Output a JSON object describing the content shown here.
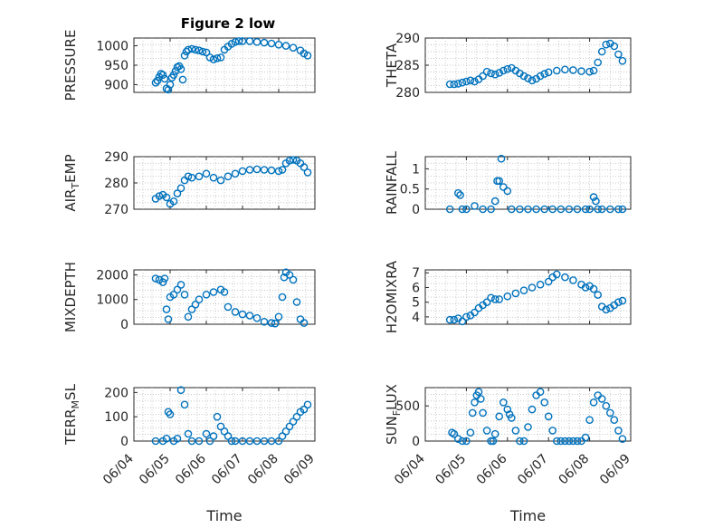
{
  "figure": {
    "title": "Figure 2 low",
    "x_axis_label": "Time",
    "x_tick_labels": [
      "06/04",
      "06/05",
      "06/06",
      "06/07",
      "06/08",
      "06/09"
    ]
  },
  "colors": {
    "marker": "#0072BD",
    "axes": "#262626",
    "grid": "#b8b8b8"
  },
  "chart_data": [
    {
      "type": "scatter",
      "panel": "top-left",
      "title": "Figure 2 low",
      "ylabel": "PRESSURE",
      "xlabel": "",
      "ylim": [
        880,
        1020
      ],
      "yticks": [
        900,
        950,
        1000
      ],
      "ytick_labels": [
        "900",
        "950",
        "1000"
      ],
      "xlim": [
        0,
        5
      ],
      "xticks": [
        0,
        1,
        2,
        3,
        4,
        5
      ],
      "x": [
        0.6,
        0.65,
        0.7,
        0.75,
        0.8,
        0.85,
        0.9,
        0.95,
        1.0,
        1.05,
        1.1,
        1.15,
        1.2,
        1.25,
        1.3,
        1.35,
        1.4,
        1.45,
        1.5,
        1.6,
        1.7,
        1.8,
        1.9,
        2.0,
        2.1,
        2.2,
        2.3,
        2.4,
        2.5,
        2.6,
        2.7,
        2.8,
        2.9,
        3.0,
        3.2,
        3.4,
        3.6,
        3.8,
        4.0,
        4.2,
        4.4,
        4.6,
        4.7,
        4.8
      ],
      "y": [
        905,
        910,
        920,
        928,
        925,
        915,
        890,
        887,
        900,
        918,
        925,
        935,
        945,
        948,
        940,
        913,
        975,
        985,
        990,
        992,
        990,
        988,
        985,
        983,
        970,
        965,
        968,
        970,
        990,
        998,
        1005,
        1010,
        1012,
        1012,
        1012,
        1010,
        1008,
        1006,
        1003,
        1000,
        995,
        988,
        980,
        975
      ]
    },
    {
      "type": "scatter",
      "panel": "top-right",
      "title": "",
      "ylabel": "THETA",
      "xlabel": "",
      "ylim": [
        280,
        290
      ],
      "yticks": [
        280,
        285,
        290
      ],
      "ytick_labels": [
        "280",
        "285",
        "290"
      ],
      "xlim": [
        0,
        5
      ],
      "xticks": [
        0,
        1,
        2,
        3,
        4,
        5
      ],
      "x": [
        0.6,
        0.7,
        0.8,
        0.9,
        1.0,
        1.1,
        1.2,
        1.3,
        1.4,
        1.5,
        1.6,
        1.7,
        1.8,
        1.9,
        2.0,
        2.1,
        2.2,
        2.3,
        2.4,
        2.5,
        2.6,
        2.7,
        2.8,
        2.9,
        3.0,
        3.2,
        3.4,
        3.6,
        3.8,
        4.0,
        4.1,
        4.2,
        4.3,
        4.4,
        4.5,
        4.6,
        4.7,
        4.8
      ],
      "y": [
        281.5,
        281.5,
        281.6,
        281.8,
        282.0,
        282.2,
        282.0,
        282.4,
        283.0,
        283.8,
        283.5,
        283.3,
        283.6,
        284.0,
        284.3,
        284.5,
        284.0,
        283.5,
        283.0,
        282.6,
        282.2,
        282.5,
        283.0,
        283.4,
        283.7,
        284.0,
        284.2,
        284.1,
        283.9,
        283.8,
        284.0,
        285.5,
        287.5,
        288.8,
        289.0,
        288.5,
        287.0,
        285.8
      ]
    },
    {
      "type": "scatter",
      "panel": "second-left",
      "title": "",
      "ylabel": "AIR_TEMP",
      "xlabel": "",
      "ylim": [
        270,
        290
      ],
      "yticks": [
        270,
        280,
        290
      ],
      "ytick_labels": [
        "270",
        "280",
        "290"
      ],
      "xlim": [
        0,
        5
      ],
      "xticks": [
        0,
        1,
        2,
        3,
        4,
        5
      ],
      "x": [
        0.6,
        0.7,
        0.8,
        0.9,
        1.0,
        1.1,
        1.2,
        1.3,
        1.4,
        1.5,
        1.6,
        1.8,
        2.0,
        2.2,
        2.4,
        2.6,
        2.8,
        3.0,
        3.2,
        3.4,
        3.6,
        3.8,
        4.0,
        4.1,
        4.2,
        4.3,
        4.4,
        4.5,
        4.6,
        4.7,
        4.8
      ],
      "y": [
        274.0,
        275.0,
        275.5,
        274.5,
        272.0,
        273.0,
        276.0,
        278.0,
        281.0,
        282.5,
        282.0,
        282.5,
        283.5,
        282.0,
        281.0,
        282.5,
        283.5,
        284.5,
        285.0,
        285.2,
        285.0,
        284.8,
        284.5,
        285.0,
        287.5,
        288.5,
        288.8,
        288.5,
        287.5,
        286.0,
        284.0
      ]
    },
    {
      "type": "scatter",
      "panel": "second-right",
      "title": "",
      "ylabel": "RAINFALL",
      "xlabel": "",
      "ylim": [
        0,
        1.3
      ],
      "yticks": [
        0,
        0.5,
        1
      ],
      "ytick_labels": [
        "0",
        "0.5",
        "1"
      ],
      "xlim": [
        0,
        5
      ],
      "xticks": [
        0,
        1,
        2,
        3,
        4,
        5
      ],
      "x": [
        0.6,
        0.8,
        0.85,
        0.9,
        1.0,
        1.2,
        1.4,
        1.6,
        1.7,
        1.75,
        1.8,
        1.85,
        1.9,
        2.0,
        2.1,
        2.3,
        2.5,
        2.7,
        2.9,
        3.1,
        3.3,
        3.5,
        3.7,
        3.9,
        4.0,
        4.1,
        4.15,
        4.2,
        4.3,
        4.5,
        4.7,
        4.8
      ],
      "y": [
        0,
        0.4,
        0.35,
        0,
        0,
        0.08,
        0,
        0,
        0.2,
        0.7,
        0.7,
        1.25,
        0.55,
        0.45,
        0,
        0,
        0,
        0,
        0,
        0,
        0,
        0,
        0,
        0,
        0,
        0.3,
        0.2,
        0,
        0,
        0,
        0,
        0
      ]
    },
    {
      "type": "scatter",
      "panel": "third-left",
      "title": "",
      "ylabel": "MIXDEPTH",
      "xlabel": "",
      "ylim": [
        0,
        2200
      ],
      "yticks": [
        0,
        1000,
        2000
      ],
      "ytick_labels": [
        "0",
        "1000",
        "2000"
      ],
      "xlim": [
        0,
        5
      ],
      "xticks": [
        0,
        1,
        2,
        3,
        4,
        5
      ],
      "x": [
        0.6,
        0.7,
        0.8,
        0.85,
        0.9,
        0.95,
        1.0,
        1.1,
        1.2,
        1.3,
        1.4,
        1.5,
        1.6,
        1.7,
        1.8,
        2.0,
        2.2,
        2.4,
        2.5,
        2.6,
        2.8,
        3.0,
        3.2,
        3.4,
        3.6,
        3.8,
        3.9,
        4.0,
        4.1,
        4.15,
        4.2,
        4.3,
        4.4,
        4.5,
        4.6,
        4.7
      ],
      "y": [
        1850,
        1800,
        1700,
        1850,
        600,
        200,
        1100,
        1200,
        1400,
        1600,
        1200,
        300,
        600,
        800,
        1000,
        1200,
        1300,
        1400,
        1300,
        700,
        500,
        400,
        350,
        250,
        100,
        50,
        30,
        300,
        1100,
        1900,
        2100,
        2000,
        1800,
        900,
        200,
        50
      ]
    },
    {
      "type": "scatter",
      "panel": "third-right",
      "title": "",
      "ylabel": "H2OMIXRA",
      "xlabel": "",
      "ylim": [
        3.5,
        7.2
      ],
      "yticks": [
        4,
        5,
        6,
        7
      ],
      "ytick_labels": [
        "4",
        "5",
        "6",
        "7"
      ],
      "xlim": [
        0,
        5
      ],
      "xticks": [
        0,
        1,
        2,
        3,
        4,
        5
      ],
      "x": [
        0.6,
        0.7,
        0.8,
        0.9,
        1.0,
        1.1,
        1.2,
        1.3,
        1.4,
        1.5,
        1.6,
        1.7,
        1.8,
        2.0,
        2.2,
        2.4,
        2.6,
        2.8,
        3.0,
        3.1,
        3.2,
        3.4,
        3.6,
        3.8,
        3.9,
        4.0,
        4.1,
        4.2,
        4.3,
        4.4,
        4.5,
        4.6,
        4.7,
        4.8
      ],
      "y": [
        3.8,
        3.8,
        3.9,
        3.7,
        4.0,
        4.1,
        4.3,
        4.6,
        4.8,
        5.0,
        5.3,
        5.2,
        5.2,
        5.4,
        5.6,
        5.8,
        6.0,
        6.2,
        6.4,
        6.7,
        6.9,
        6.7,
        6.5,
        6.2,
        6.0,
        6.1,
        5.9,
        5.5,
        4.7,
        4.5,
        4.6,
        4.8,
        5.0,
        5.1
      ]
    },
    {
      "type": "scatter",
      "panel": "bottom-left",
      "title": "",
      "ylabel": "TERR_MSL",
      "xlabel": "Time",
      "ylim": [
        0,
        220
      ],
      "yticks": [
        0,
        100,
        200
      ],
      "ytick_labels": [
        "0",
        "100",
        "200"
      ],
      "xlim": [
        0,
        5
      ],
      "xticks": [
        0,
        1,
        2,
        3,
        4,
        5
      ],
      "x": [
        0.6,
        0.8,
        0.9,
        0.95,
        1.0,
        1.1,
        1.2,
        1.3,
        1.4,
        1.5,
        1.6,
        1.8,
        2.0,
        2.1,
        2.2,
        2.3,
        2.4,
        2.5,
        2.6,
        2.7,
        2.8,
        3.0,
        3.2,
        3.4,
        3.6,
        3.8,
        4.0,
        4.1,
        4.2,
        4.3,
        4.4,
        4.5,
        4.6,
        4.7,
        4.8
      ],
      "y": [
        0,
        0,
        10,
        120,
        110,
        0,
        10,
        210,
        150,
        30,
        0,
        0,
        30,
        0,
        20,
        100,
        60,
        40,
        20,
        0,
        0,
        0,
        0,
        0,
        0,
        0,
        0,
        20,
        40,
        60,
        80,
        100,
        120,
        130,
        150
      ]
    },
    {
      "type": "scatter",
      "panel": "bottom-right",
      "title": "",
      "ylabel": "SUN_FLUX",
      "xlabel": "Time",
      "ylim": [
        0,
        760
      ],
      "yticks": [
        0,
        500
      ],
      "ytick_labels": [
        "0",
        "500"
      ],
      "xlim": [
        0,
        5
      ],
      "xticks": [
        0,
        1,
        2,
        3,
        4,
        5
      ],
      "x": [
        0.65,
        0.7,
        0.8,
        0.9,
        1.0,
        1.1,
        1.15,
        1.2,
        1.25,
        1.3,
        1.35,
        1.4,
        1.5,
        1.6,
        1.65,
        1.7,
        1.8,
        1.9,
        2.0,
        2.05,
        2.1,
        2.2,
        2.3,
        2.4,
        2.5,
        2.6,
        2.7,
        2.8,
        2.9,
        3.0,
        3.1,
        3.2,
        3.3,
        3.4,
        3.5,
        3.6,
        3.7,
        3.8,
        3.9,
        4.0,
        4.1,
        4.2,
        4.3,
        4.4,
        4.5,
        4.6,
        4.7,
        4.8
      ],
      "y": [
        120,
        100,
        30,
        0,
        0,
        120,
        400,
        550,
        650,
        700,
        600,
        400,
        150,
        0,
        0,
        100,
        350,
        550,
        450,
        380,
        330,
        150,
        0,
        0,
        200,
        450,
        650,
        700,
        550,
        350,
        150,
        0,
        0,
        0,
        0,
        0,
        0,
        0,
        50,
        300,
        550,
        650,
        600,
        500,
        400,
        300,
        150,
        30
      ]
    }
  ]
}
